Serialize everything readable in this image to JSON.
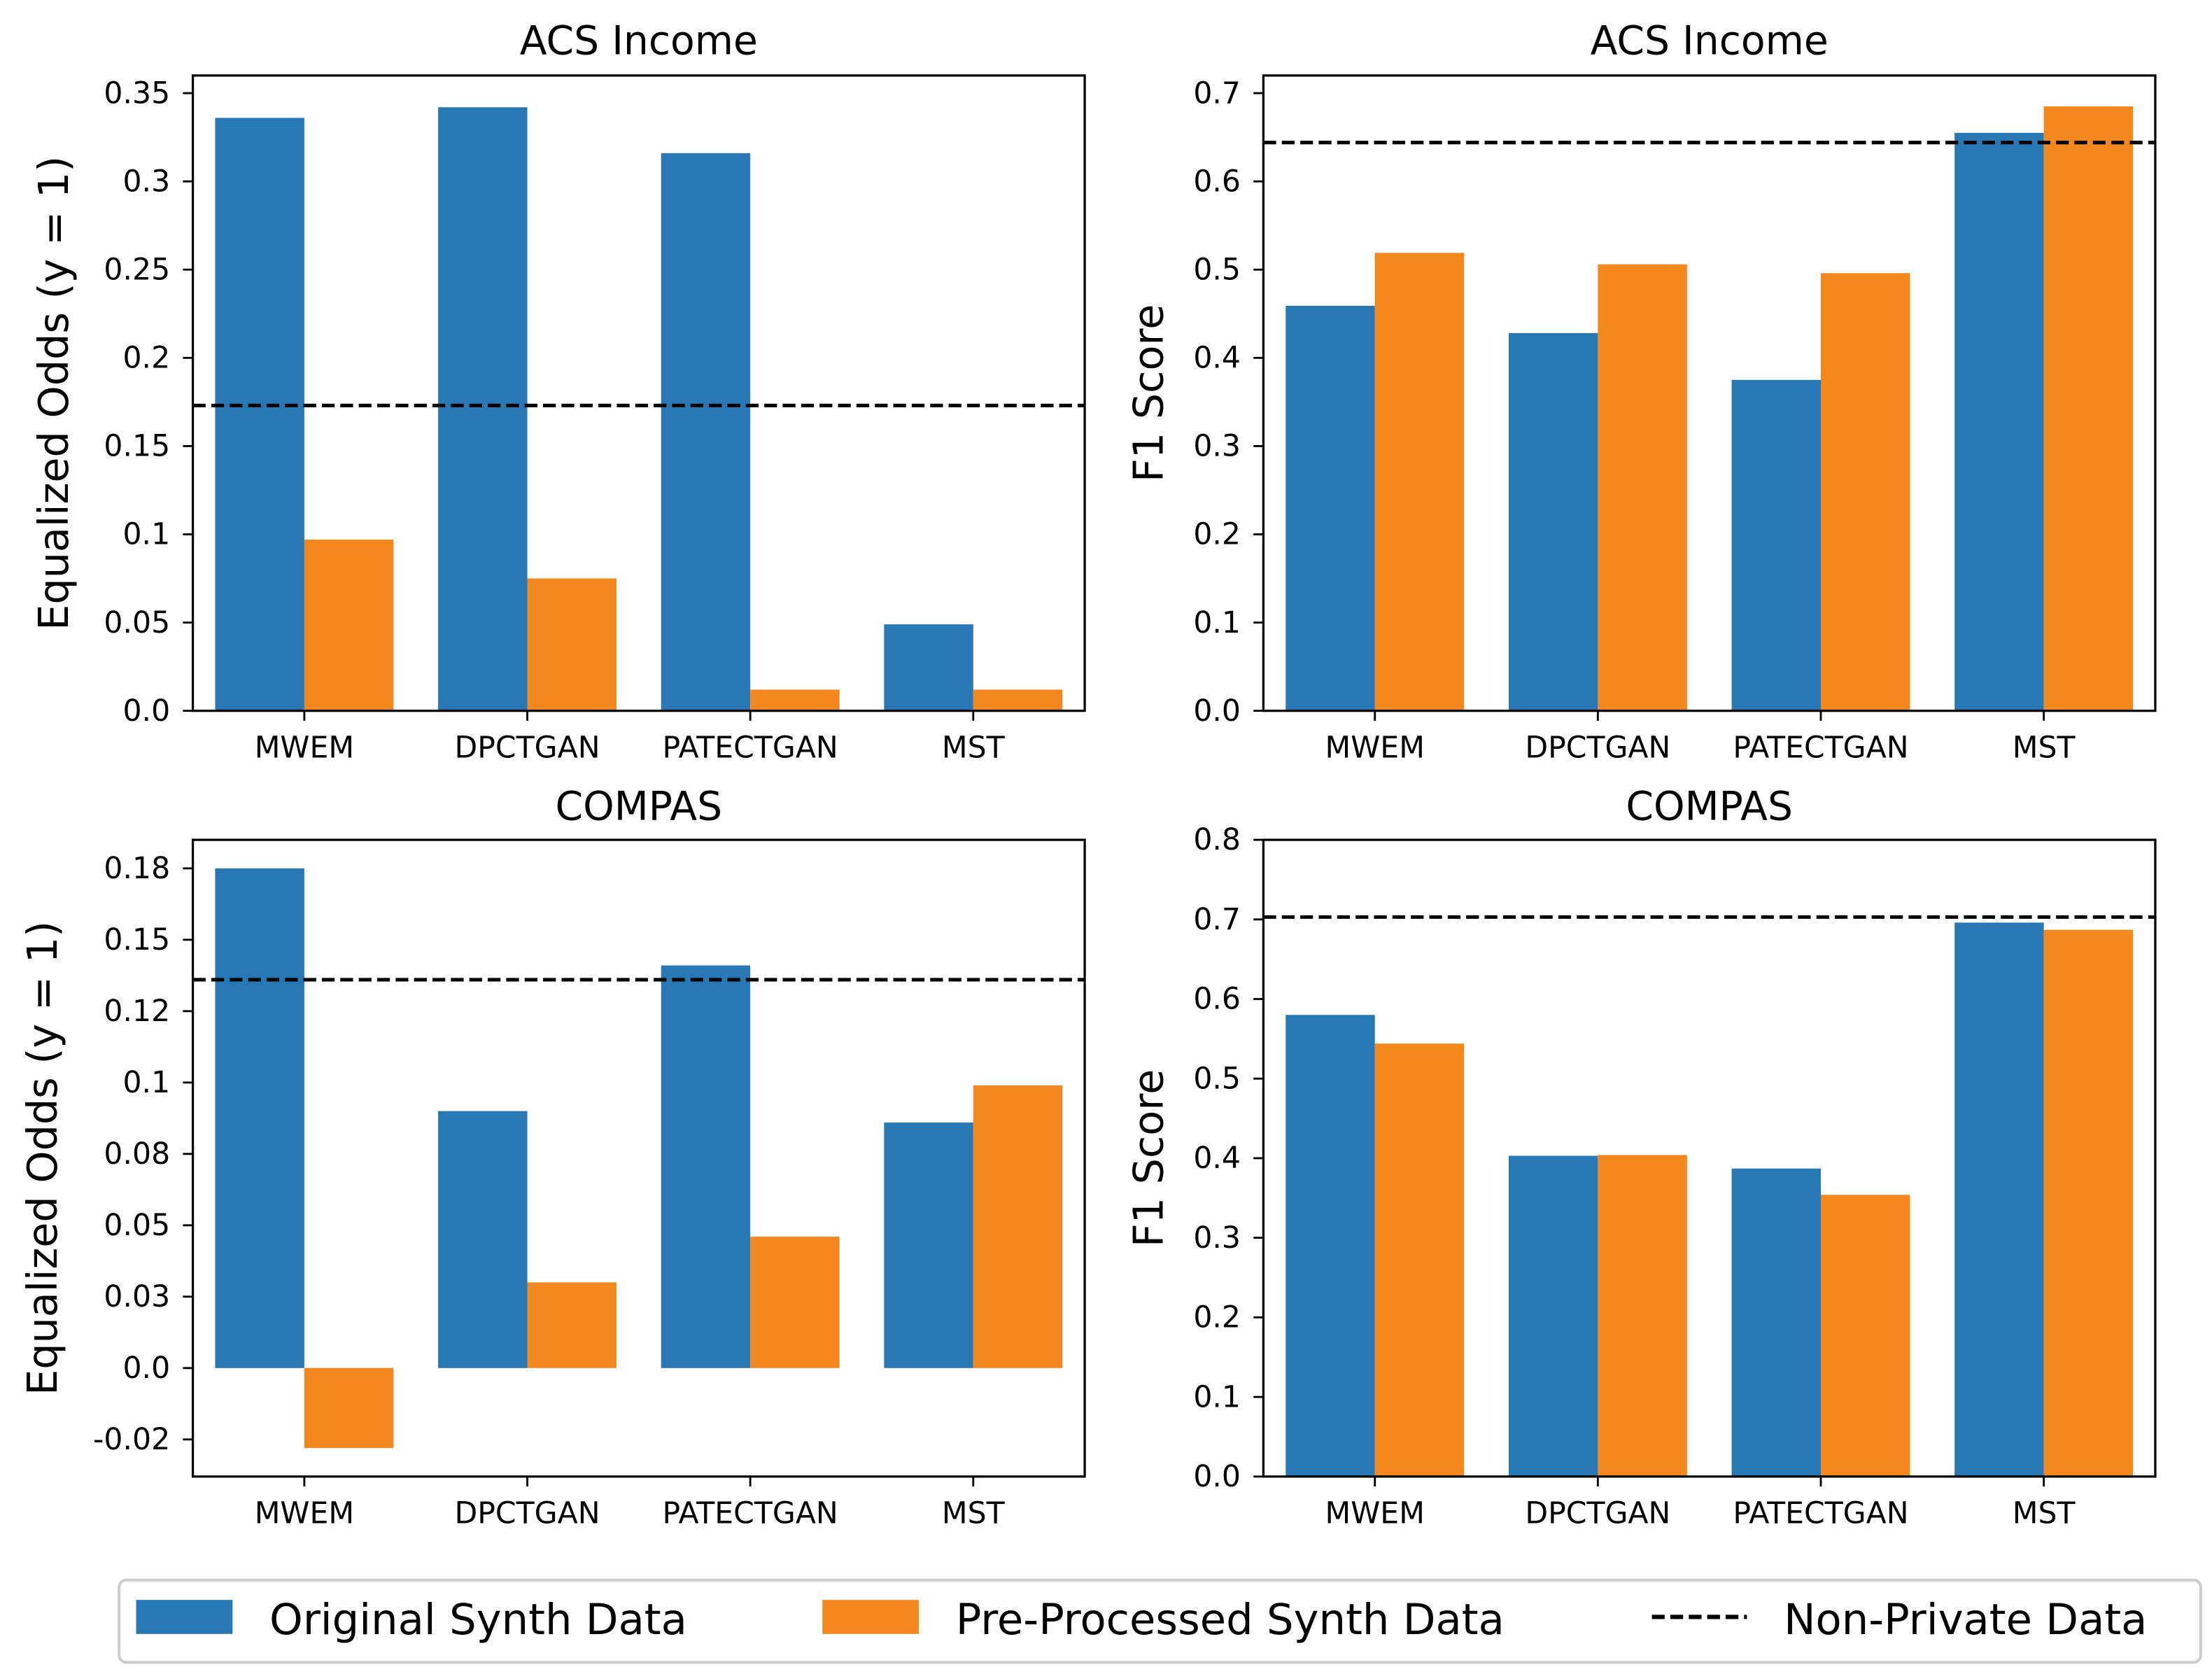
{
  "legend": {
    "items": [
      {
        "label": "Original Synth Data",
        "color": "#2878b5",
        "kind": "patch"
      },
      {
        "label": "Pre-Processed Synth Data",
        "color": "#f5871f",
        "kind": "patch"
      },
      {
        "label": "Non-Private Data",
        "color": "#000000",
        "kind": "dashed-line"
      }
    ]
  },
  "chart_data": [
    {
      "type": "bar",
      "title": "ACS Income",
      "xlabel": "",
      "ylabel": "Equalized Odds (y = 1)",
      "categories": [
        "MWEM",
        "DPCTGAN",
        "PATECTGAN",
        "MST"
      ],
      "series": [
        {
          "name": "Original Synth Data",
          "values": [
            0.336,
            0.342,
            0.316,
            0.049
          ]
        },
        {
          "name": "Pre-Processed Synth Data",
          "values": [
            0.097,
            0.075,
            0.012,
            0.012
          ]
        }
      ],
      "reference_line": {
        "name": "Non-Private Data",
        "value": 0.173,
        "style": "dashed"
      },
      "ylim": [
        0.0,
        0.36
      ],
      "yticks": [
        0.0,
        0.05,
        0.1,
        0.15,
        0.2,
        0.25,
        0.3,
        0.35
      ],
      "ytick_labels": [
        "0.0",
        "0.05",
        "0.1",
        "0.15",
        "0.2",
        "0.25",
        "0.3",
        "0.35"
      ],
      "grid": false
    },
    {
      "type": "bar",
      "title": "ACS Income",
      "xlabel": "",
      "ylabel": "F1 Score",
      "categories": [
        "MWEM",
        "DPCTGAN",
        "PATECTGAN",
        "MST"
      ],
      "series": [
        {
          "name": "Original Synth Data",
          "values": [
            0.459,
            0.428,
            0.375,
            0.655
          ]
        },
        {
          "name": "Pre-Processed Synth Data",
          "values": [
            0.519,
            0.506,
            0.496,
            0.685
          ]
        }
      ],
      "reference_line": {
        "name": "Non-Private Data",
        "value": 0.644,
        "style": "dashed"
      },
      "ylim": [
        0.0,
        0.72
      ],
      "yticks": [
        0.0,
        0.1,
        0.2,
        0.3,
        0.4,
        0.5,
        0.6,
        0.7
      ],
      "ytick_labels": [
        "0.0",
        "0.1",
        "0.2",
        "0.3",
        "0.4",
        "0.5",
        "0.6",
        "0.7"
      ],
      "grid": false
    },
    {
      "type": "bar",
      "title": "COMPAS",
      "xlabel": "",
      "ylabel": "Equalized Odds (y = 1)",
      "categories": [
        "MWEM",
        "DPCTGAN",
        "PATECTGAN",
        "MST"
      ],
      "series": [
        {
          "name": "Original Synth Data",
          "values": [
            0.175,
            0.09,
            0.141,
            0.086
          ]
        },
        {
          "name": "Pre-Processed Synth Data",
          "values": [
            -0.028,
            0.03,
            0.046,
            0.099
          ]
        }
      ],
      "reference_line": {
        "name": "Non-Private Data",
        "value": 0.136,
        "style": "dashed"
      },
      "ylim": [
        -0.038,
        0.185
      ],
      "yticks": [
        -0.025,
        0.0,
        0.025,
        0.05,
        0.075,
        0.1,
        0.125,
        0.15,
        0.175
      ],
      "ytick_labels": [
        "-0.02",
        "0.0",
        "0.03",
        "0.05",
        "0.08",
        "0.1",
        "0.12",
        "0.15",
        "0.18"
      ],
      "grid": false
    },
    {
      "type": "bar",
      "title": "COMPAS",
      "xlabel": "",
      "ylabel": "F1 Score",
      "categories": [
        "MWEM",
        "DPCTGAN",
        "PATECTGAN",
        "MST"
      ],
      "series": [
        {
          "name": "Original Synth Data",
          "values": [
            0.58,
            0.403,
            0.387,
            0.696
          ]
        },
        {
          "name": "Pre-Processed Synth Data",
          "values": [
            0.544,
            0.404,
            0.354,
            0.687
          ]
        }
      ],
      "reference_line": {
        "name": "Non-Private Data",
        "value": 0.703,
        "style": "dashed"
      },
      "ylim": [
        0.0,
        0.8
      ],
      "yticks": [
        0.0,
        0.1,
        0.2,
        0.3,
        0.4,
        0.5,
        0.6,
        0.7,
        0.8
      ],
      "ytick_labels": [
        "0.0",
        "0.1",
        "0.2",
        "0.3",
        "0.4",
        "0.5",
        "0.6",
        "0.7",
        "0.8"
      ],
      "grid": false
    }
  ]
}
